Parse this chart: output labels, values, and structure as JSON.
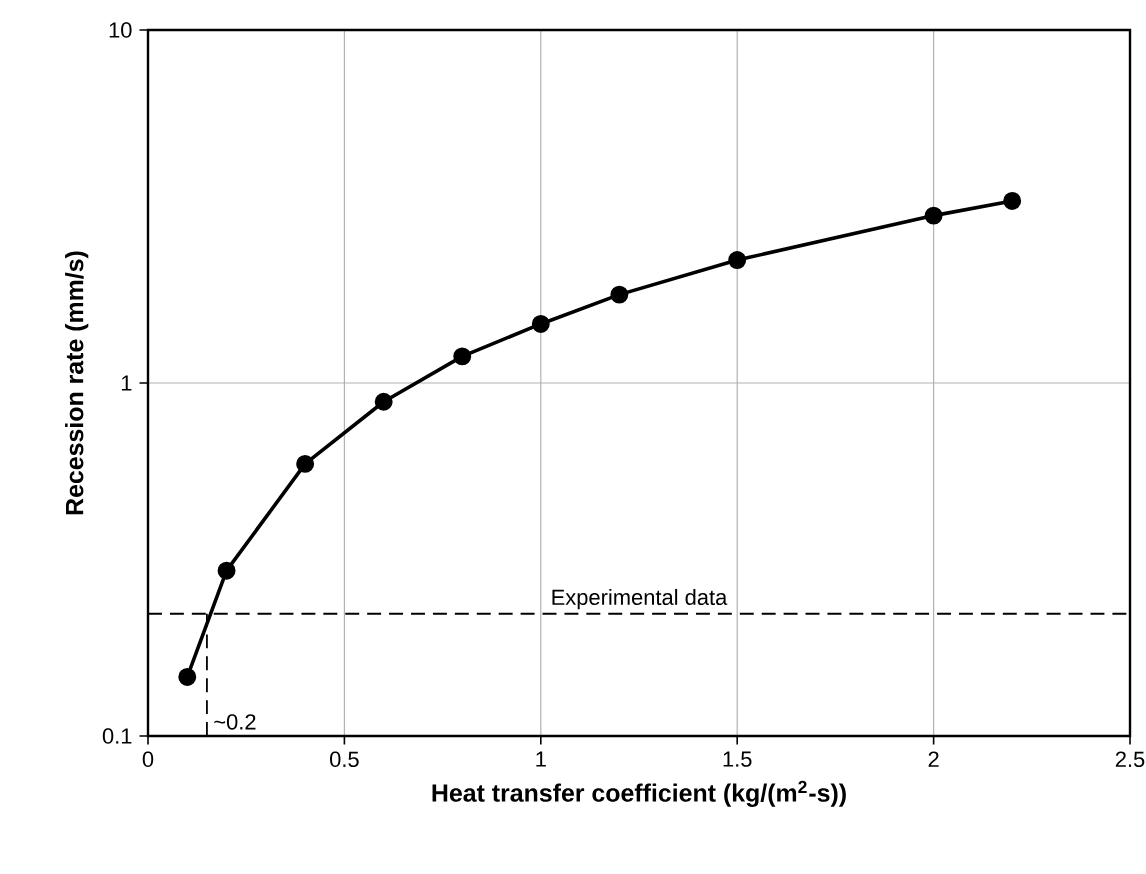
{
  "chart_data": {
    "type": "line",
    "xlabel": "Heat transfer coefficient (kg/(m$^{2}$-s))",
    "ylabel": "Recession rate (mm/s)",
    "x": [
      0.1,
      0.2,
      0.4,
      0.6,
      0.8,
      1.0,
      1.2,
      1.5,
      2.0,
      2.2
    ],
    "series": [
      {
        "color": "#000000",
        "values": [
          0.147,
          0.294,
          0.59,
          0.885,
          1.19,
          1.47,
          1.78,
          2.23,
          2.98,
          3.28
        ]
      }
    ],
    "xlim": [
      0,
      2.5
    ],
    "xticks": [
      0,
      0.5,
      1,
      1.5,
      2,
      2.5
    ],
    "ylim": [
      0.1,
      10
    ],
    "yticks": [
      0.1,
      1,
      10
    ],
    "log": "y",
    "grid": true,
    "marker": "circle",
    "line_style": "solid",
    "ref_lines": [
      {
        "axis": "y",
        "value": 0.222,
        "label": "Experimental data",
        "color": "#000000",
        "line_style": "dashed"
      },
      {
        "axis": "x",
        "value": 0.15,
        "label": "~0.2",
        "color": "#000000",
        "line_style": "dashed"
      }
    ]
  }
}
